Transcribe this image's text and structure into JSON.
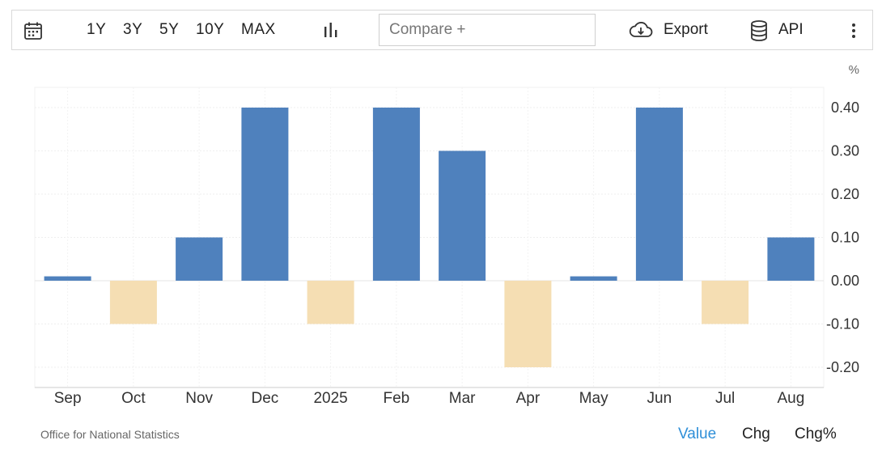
{
  "toolbar": {
    "ranges": [
      "1Y",
      "3Y",
      "5Y",
      "10Y",
      "MAX"
    ],
    "compare_placeholder": "Compare +",
    "export_label": "Export",
    "api_label": "API"
  },
  "footer": {
    "source": "Office for National Statistics",
    "tabs": [
      "Value",
      "Chg",
      "Chg%"
    ],
    "active_tab": "Value"
  },
  "colors": {
    "positive": "#4f81bd",
    "negative": "#f5deb3",
    "active_tab": "#2f8fd8"
  },
  "chart_data": {
    "type": "bar",
    "unit": "%",
    "categories": [
      "Sep",
      "Oct",
      "Nov",
      "Dec",
      "2025",
      "Feb",
      "Mar",
      "Apr",
      "May",
      "Jun",
      "Jul",
      "Aug"
    ],
    "values": [
      0.01,
      -0.1,
      0.1,
      0.4,
      -0.1,
      0.4,
      0.3,
      -0.2,
      0.01,
      0.4,
      -0.1,
      0.1
    ],
    "yticks": [
      0.4,
      0.3,
      0.2,
      0.1,
      0.0,
      -0.1,
      -0.2
    ],
    "ytick_labels": [
      "0.40",
      "0.30",
      "0.20",
      "0.10",
      "0.00",
      "-0.10",
      "-0.20"
    ],
    "ylim": [
      -0.25,
      0.45
    ],
    "y_axis_position": "right",
    "grid": true
  }
}
